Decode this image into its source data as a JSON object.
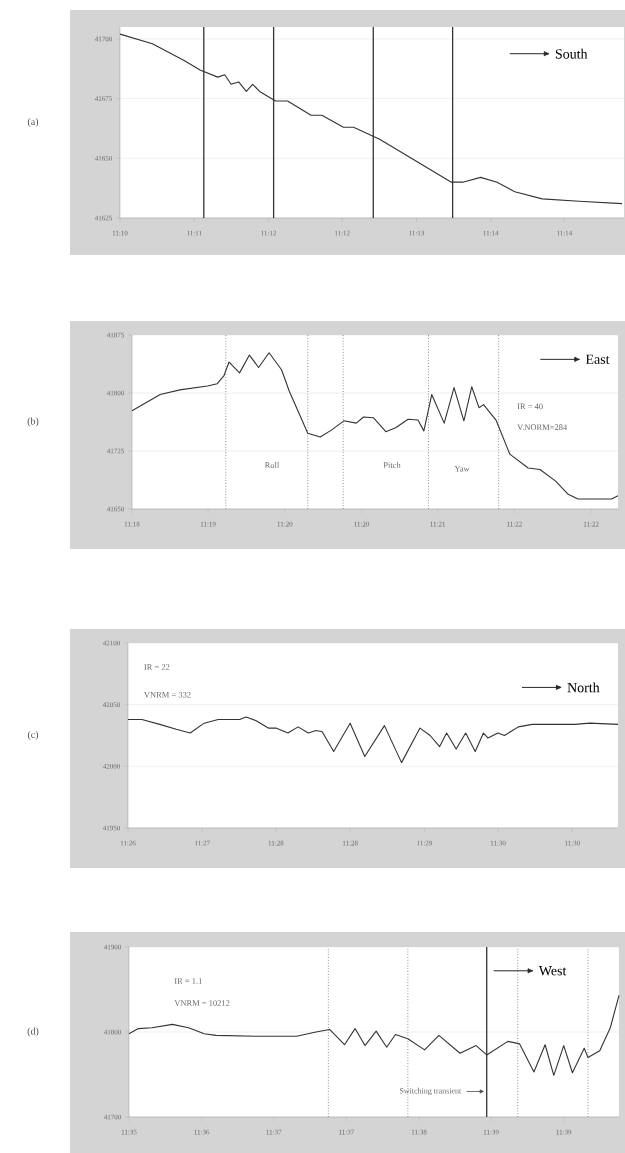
{
  "chart_data": [
    {
      "type": "line",
      "ylabel": "(a)",
      "grid": "y",
      "color": "#333333",
      "x": [
        11.1708,
        11.1759,
        11.1809,
        11.1834,
        11.1862,
        11.1873,
        11.1883,
        11.1895,
        11.1907,
        11.1917,
        11.1928,
        11.1953,
        11.1972,
        11.2009,
        11.2026,
        11.206,
        11.2076,
        11.2117,
        11.2167,
        11.223,
        11.2248,
        11.2276,
        11.2302,
        11.233,
        11.2373,
        11.2431,
        11.2499
      ],
      "values": [
        41702,
        41698,
        41691,
        41687,
        41684,
        41685,
        41681,
        41682,
        41678,
        41681,
        41678,
        41674,
        41674,
        41668,
        41668,
        41663,
        41663,
        41658,
        41650,
        41640,
        41640,
        41642,
        41640,
        41636,
        41633,
        41632,
        41631
      ],
      "xlim": [
        11.1708,
        11.2502
      ],
      "ylim": [
        41625,
        41705
      ],
      "yticks": [
        41625,
        41650,
        41675,
        41700
      ],
      "xticks": [
        {
          "value": 11.1708,
          "label": "11:10"
        },
        {
          "value": 11.1825,
          "label": "11:11"
        },
        {
          "value": 11.1942,
          "label": "11:12"
        },
        {
          "value": 11.2058,
          "label": "11:12"
        },
        {
          "value": 11.2175,
          "label": "11:13"
        },
        {
          "value": 11.2292,
          "label": "11:14"
        },
        {
          "value": 11.2408,
          "label": "11:14"
        }
      ],
      "ref_lines": [
        {
          "axis": "x",
          "value": 11.184,
          "line_style": "solid",
          "color": "#333333"
        },
        {
          "axis": "x",
          "value": 11.195,
          "line_style": "solid",
          "color": "#333333"
        },
        {
          "axis": "x",
          "value": 11.2107,
          "line_style": "solid",
          "color": "#333333"
        },
        {
          "axis": "x",
          "value": 11.2232,
          "line_style": "solid",
          "color": "#333333"
        }
      ],
      "annotations": [
        "South"
      ]
    },
    {
      "type": "line",
      "ylabel": "(b)",
      "grid": "y",
      "color": "#333333",
      "x": [
        11.3042,
        11.3085,
        11.3115,
        11.3157,
        11.3172,
        11.3182,
        11.319,
        11.3206,
        11.3221,
        11.3235,
        11.3251,
        11.327,
        11.3282,
        11.331,
        11.3329,
        11.3346,
        11.3365,
        11.3384,
        11.3395,
        11.341,
        11.3429,
        11.3444,
        11.3463,
        11.3478,
        11.3487,
        11.3499,
        11.3518,
        11.3533,
        11.3548,
        11.356,
        11.3571,
        11.3578,
        11.3597,
        11.3618,
        11.3646,
        11.3664,
        11.3688,
        11.3707,
        11.3722,
        11.3773,
        11.3783
      ],
      "values": [
        41777,
        41798,
        41804,
        41809,
        41812,
        41822,
        41840,
        41826,
        41849,
        41833,
        41852,
        41830,
        41802,
        41748,
        41743,
        41752,
        41764,
        41761,
        41769,
        41768,
        41750,
        41755,
        41766,
        41765,
        41751,
        41798,
        41761,
        41807,
        41764,
        41808,
        41781,
        41785,
        41765,
        41721,
        41703,
        41701,
        41686,
        41669,
        41663,
        41663,
        41667
      ],
      "xlim": [
        11.3042,
        11.3783
      ],
      "ylim": [
        41650,
        41875
      ],
      "yticks": [
        41650,
        41725,
        41800,
        41875
      ],
      "xticks": [
        {
          "value": 11.3042,
          "label": "11:18"
        },
        {
          "value": 11.3158,
          "label": "11:19"
        },
        {
          "value": 11.3275,
          "label": "11:20"
        },
        {
          "value": 11.3392,
          "label": "11:20"
        },
        {
          "value": 11.3508,
          "label": "11:21"
        },
        {
          "value": 11.3625,
          "label": "11:22"
        },
        {
          "value": 11.3742,
          "label": "11:22"
        }
      ],
      "ref_lines": [
        {
          "axis": "x",
          "value": 11.3185,
          "line_style": "dotted",
          "color": "#555555"
        },
        {
          "axis": "x",
          "value": 11.331,
          "line_style": "dotted",
          "color": "#555555"
        },
        {
          "axis": "x",
          "value": 11.3364,
          "line_style": "dotted",
          "color": "#555555"
        },
        {
          "axis": "x",
          "value": 11.3494,
          "line_style": "dotted",
          "color": "#555555"
        },
        {
          "axis": "x",
          "value": 11.3601,
          "line_style": "dotted",
          "color": "#555555"
        }
      ],
      "annotations": [
        "East",
        "IR = 40",
        "V.NORM=284",
        "Roll",
        "Pitch",
        "Yaw"
      ]
    },
    {
      "type": "line",
      "ylabel": "(c)",
      "grid": "y",
      "color": "#333333",
      "x": [
        11.4375,
        11.4397,
        11.4425,
        11.4451,
        11.4473,
        11.4495,
        11.4517,
        11.4551,
        11.4561,
        11.4577,
        11.4596,
        11.4608,
        11.4627,
        11.4643,
        11.4659,
        11.4671,
        11.4681,
        11.4699,
        11.4725,
        11.4748,
        11.4779,
        11.4806,
        11.4835,
        11.4851,
        11.4866,
        11.4877,
        11.4892,
        11.4907,
        11.4922,
        11.4935,
        11.4942,
        11.4958,
        11.4968,
        11.499,
        11.5012,
        11.5079,
        11.5103,
        11.5147
      ],
      "values": [
        42038,
        42038,
        42034,
        42030,
        42027,
        42035,
        42038,
        42038,
        42040,
        42037,
        42031,
        42031,
        42027,
        42032,
        42027,
        42029,
        42028,
        42012,
        42035,
        42008,
        42033,
        42003,
        42031,
        42025,
        42016,
        42027,
        42014,
        42027,
        42012,
        42027,
        42023,
        42027,
        42025,
        42032,
        42034,
        42034,
        42035,
        42034
      ],
      "xlim": [
        11.4375,
        11.5147
      ],
      "ylim": [
        41950,
        42100
      ],
      "yticks": [
        41950,
        42000,
        42050,
        42100
      ],
      "xticks": [
        {
          "value": 11.4375,
          "label": "11:26"
        },
        {
          "value": 11.4492,
          "label": "11:27"
        },
        {
          "value": 11.4608,
          "label": "11:28"
        },
        {
          "value": 11.4725,
          "label": "11:28"
        },
        {
          "value": 11.4842,
          "label": "11:29"
        },
        {
          "value": 11.4958,
          "label": "11:30"
        },
        {
          "value": 11.5075,
          "label": "11:30"
        }
      ],
      "annotations": [
        "North",
        "IR = 22",
        "VNRM = 332"
      ]
    },
    {
      "type": "line",
      "ylabel": "(d)",
      "grid": "y",
      "color": "#333333",
      "x": [
        11.5875,
        11.589,
        11.5912,
        11.5945,
        11.5971,
        11.5996,
        11.6015,
        11.6079,
        11.6145,
        11.6176,
        11.6198,
        11.6222,
        11.6239,
        11.6255,
        11.6273,
        11.629,
        11.6304,
        11.6324,
        11.6351,
        11.6374,
        11.6408,
        11.6434,
        11.6451,
        11.6485,
        11.6504,
        11.6527,
        11.6545,
        11.6559,
        11.6575,
        11.6589,
        11.6608,
        11.6614,
        11.6633,
        11.665,
        11.6664
      ],
      "values": [
        41798,
        41804,
        41805,
        41809,
        41805,
        41798,
        41796,
        41795,
        41795,
        41800,
        41803,
        41785,
        41804,
        41784,
        41801,
        41782,
        41797,
        41792,
        41779,
        41796,
        41775,
        41784,
        41773,
        41789,
        41786,
        41753,
        41785,
        41749,
        41784,
        41752,
        41781,
        41770,
        41778,
        41805,
        41843
      ],
      "xlim": [
        11.5875,
        11.6664
      ],
      "ylim": [
        41700,
        41900
      ],
      "yticks": [
        41700,
        41800,
        41900
      ],
      "xticks": [
        {
          "value": 11.5875,
          "label": "11:35"
        },
        {
          "value": 11.5992,
          "label": "11:36"
        },
        {
          "value": 11.6108,
          "label": "11:37"
        },
        {
          "value": 11.6225,
          "label": "11:37"
        },
        {
          "value": 11.6342,
          "label": "11:38"
        },
        {
          "value": 11.6458,
          "label": "11:39"
        },
        {
          "value": 11.6575,
          "label": "11:39"
        }
      ],
      "ref_lines": [
        {
          "axis": "x",
          "value": 11.6196,
          "line_style": "dotted",
          "color": "#555555"
        },
        {
          "axis": "x",
          "value": 11.6324,
          "line_style": "dotted",
          "color": "#555555"
        },
        {
          "axis": "x",
          "value": 11.6451,
          "line_style": "solid",
          "color": "#333333",
          "label": "Switching transient"
        },
        {
          "axis": "x",
          "value": 11.6501,
          "line_style": "dotted",
          "color": "#555555"
        },
        {
          "axis": "x",
          "value": 11.6614,
          "line_style": "dotted",
          "color": "#555555"
        }
      ],
      "annotations": [
        "West",
        "IR = 1.1",
        "VNRM = 10212"
      ]
    }
  ]
}
